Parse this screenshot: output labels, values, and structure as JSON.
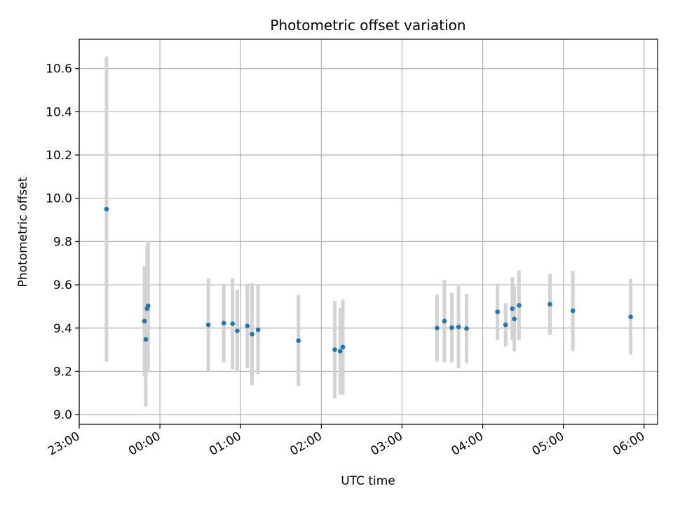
{
  "chart_data": {
    "type": "scatter",
    "title": "Photometric offset variation",
    "xlabel": "UTC time",
    "ylabel": "Photometric offset",
    "grid": true,
    "x_unit": "minutes after 23:00",
    "xlim": [
      0,
      430
    ],
    "ylim": [
      8.955,
      10.735
    ],
    "x_ticks": [
      {
        "value": 0,
        "label": "23:00"
      },
      {
        "value": 60,
        "label": "00:00"
      },
      {
        "value": 120,
        "label": "01:00"
      },
      {
        "value": 180,
        "label": "02:00"
      },
      {
        "value": 240,
        "label": "03:00"
      },
      {
        "value": 300,
        "label": "04:00"
      },
      {
        "value": 360,
        "label": "05:00"
      },
      {
        "value": 420,
        "label": "06:00"
      }
    ],
    "y_ticks": [
      {
        "value": 9.0,
        "label": "9.0"
      },
      {
        "value": 9.2,
        "label": "9.2"
      },
      {
        "value": 9.4,
        "label": "9.4"
      },
      {
        "value": 9.6,
        "label": "9.6"
      },
      {
        "value": 9.8,
        "label": "9.8"
      },
      {
        "value": 10.0,
        "label": "10.0"
      },
      {
        "value": 10.2,
        "label": "10.2"
      },
      {
        "value": 10.4,
        "label": "10.4"
      },
      {
        "value": 10.6,
        "label": "10.6"
      }
    ],
    "series": [
      {
        "name": "offset",
        "marker_color": "#1f77b4",
        "errorbar_color": "#d3d3d3",
        "points": [
          {
            "x": 20.3,
            "y": 9.95,
            "yerr": 0.705
          },
          {
            "x": 48.5,
            "y": 9.432,
            "yerr": 0.255
          },
          {
            "x": 49.5,
            "y": 9.348,
            "yerr": 0.31
          },
          {
            "x": 50.5,
            "y": 9.49,
            "yerr": 0.29
          },
          {
            "x": 51.2,
            "y": 9.503,
            "yerr": 0.3
          },
          {
            "x": 96.0,
            "y": 9.415,
            "yerr": 0.215
          },
          {
            "x": 107.5,
            "y": 9.423,
            "yerr": 0.18
          },
          {
            "x": 114.0,
            "y": 9.42,
            "yerr": 0.21
          },
          {
            "x": 117.5,
            "y": 9.387,
            "yerr": 0.19
          },
          {
            "x": 125.0,
            "y": 9.41,
            "yerr": 0.195
          },
          {
            "x": 128.5,
            "y": 9.372,
            "yerr": 0.235
          },
          {
            "x": 133.0,
            "y": 9.392,
            "yerr": 0.205
          },
          {
            "x": 163.0,
            "y": 9.342,
            "yerr": 0.21
          },
          {
            "x": 190.0,
            "y": 9.3,
            "yerr": 0.225
          },
          {
            "x": 194.0,
            "y": 9.293,
            "yerr": 0.2
          },
          {
            "x": 196.0,
            "y": 9.312,
            "yerr": 0.22
          },
          {
            "x": 266.0,
            "y": 9.4,
            "yerr": 0.155
          },
          {
            "x": 271.5,
            "y": 9.432,
            "yerr": 0.19
          },
          {
            "x": 277.0,
            "y": 9.402,
            "yerr": 0.16
          },
          {
            "x": 282.0,
            "y": 9.405,
            "yerr": 0.19
          },
          {
            "x": 288.0,
            "y": 9.398,
            "yerr": 0.16
          },
          {
            "x": 311.0,
            "y": 9.475,
            "yerr": 0.13
          },
          {
            "x": 317.0,
            "y": 9.415,
            "yerr": 0.1
          },
          {
            "x": 322.0,
            "y": 9.49,
            "yerr": 0.145
          },
          {
            "x": 323.5,
            "y": 9.442,
            "yerr": 0.15
          },
          {
            "x": 327.0,
            "y": 9.505,
            "yerr": 0.16
          },
          {
            "x": 350.0,
            "y": 9.51,
            "yerr": 0.14
          },
          {
            "x": 367.0,
            "y": 9.48,
            "yerr": 0.185
          },
          {
            "x": 410.0,
            "y": 9.452,
            "yerr": 0.175
          }
        ]
      }
    ]
  }
}
